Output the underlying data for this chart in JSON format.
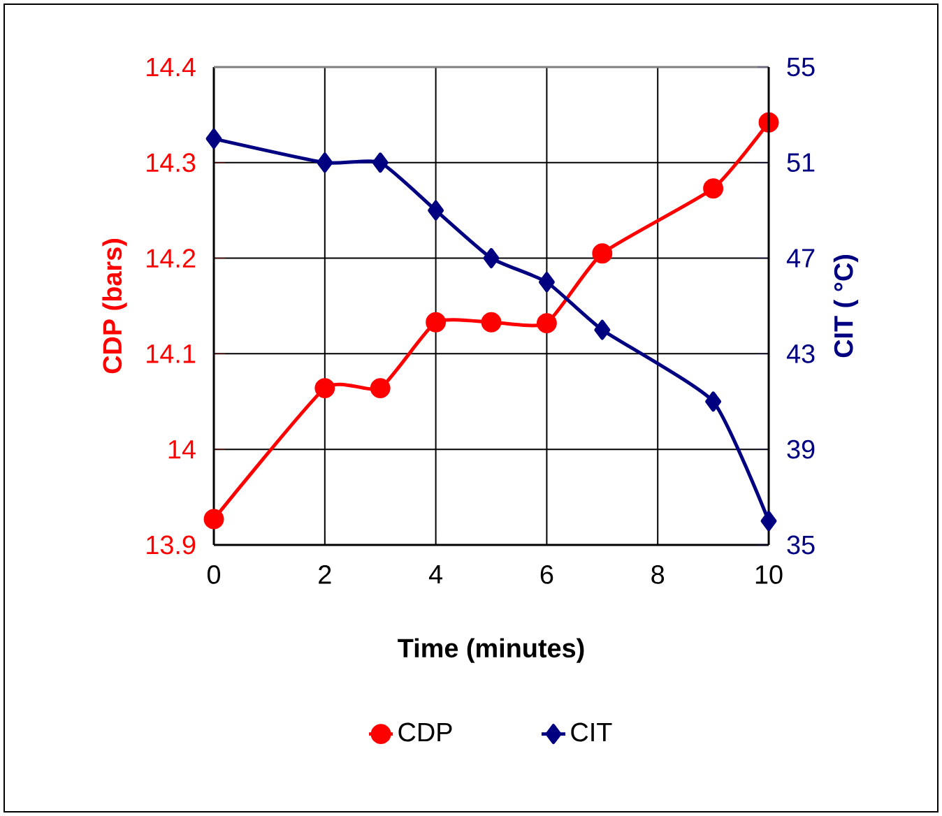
{
  "chart_data": {
    "type": "line",
    "xlabel": "Time (minutes)",
    "ylabel": "CDP (bars)",
    "y2label": "CIT ( °C)",
    "x": [
      0,
      2,
      3,
      4,
      5,
      6,
      7,
      9,
      10
    ],
    "series": [
      {
        "name": "CDP",
        "color": "#ff0000",
        "marker": "circle",
        "values": [
          13.927,
          14.064,
          14.064,
          14.133,
          14.133,
          14.132,
          14.205,
          14.273,
          14.342
        ]
      },
      {
        "name": "CIT",
        "color": "#000080",
        "marker": "diamond",
        "axis": "y2",
        "values": [
          52,
          51,
          51,
          49,
          47,
          46,
          44,
          41,
          36
        ]
      }
    ],
    "xlim": [
      0,
      10
    ],
    "xticks": [
      0,
      2,
      4,
      6,
      8,
      10
    ],
    "ylim": [
      13.9,
      14.4
    ],
    "yticks": [
      13.9,
      14,
      14.1,
      14.2,
      14.3,
      14.4
    ],
    "y2lim": [
      35,
      55
    ],
    "y2ticks": [
      35,
      39,
      43,
      47,
      51,
      55
    ],
    "grid": true,
    "legend": "bottom"
  }
}
